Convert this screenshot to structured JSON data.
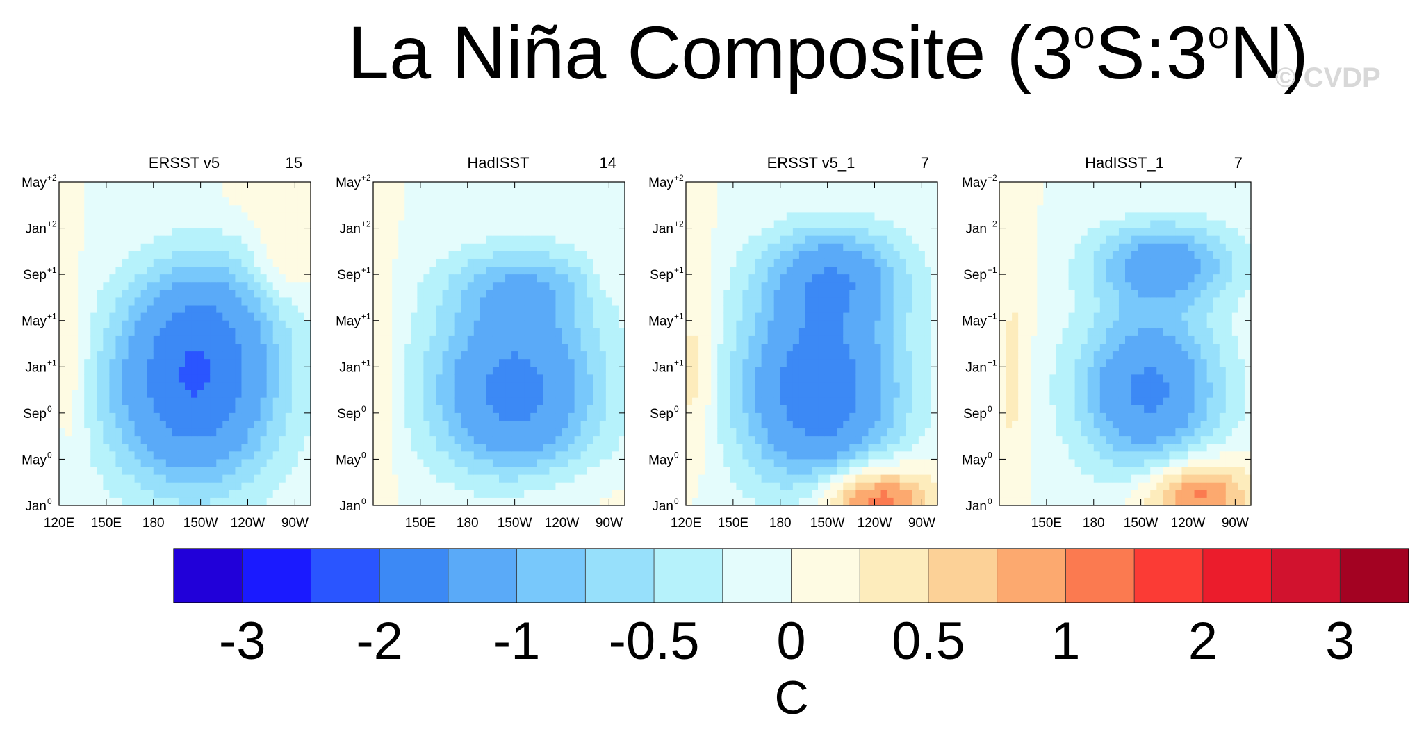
{
  "title": {
    "main": "La Niña Composite (3",
    "sup1": "o",
    "mid": "S:3",
    "sup2": "o",
    "end": "N)"
  },
  "watermark": "© CVDP",
  "colors": {
    "contour_fills": [
      "#2100d9",
      "#1a1aff",
      "#2a55ff",
      "#3c89f5",
      "#5aaaf8",
      "#78c8fb",
      "#97e0fb",
      "#b6f2fb",
      "#e4fcfc",
      "#fefbe3",
      "#fdecbc",
      "#fcd197",
      "#fca96f",
      "#fb7a50",
      "#fb3b35",
      "#eb1c2c",
      "#d1122e",
      "#a30222"
    ],
    "contour_line": "#666666"
  },
  "chart_data": {
    "type": "heatmap",
    "shared_axes": {
      "x_tick_labels": [
        "120E",
        "150E",
        "180",
        "150W",
        "120W",
        "90W"
      ],
      "x_ticks_deg": [
        120,
        150,
        180,
        210,
        240,
        270
      ],
      "y_tick_labels": [
        "Jan",
        "May",
        "Sep",
        "Jan",
        "May",
        "Sep",
        "Jan",
        "May"
      ],
      "y_tick_sups": [
        "0",
        "0",
        "0",
        "+1",
        "+1",
        "+1",
        "+2",
        "+2"
      ]
    },
    "colorbar": {
      "levels": [
        -3,
        -2.5,
        -2,
        -1.5,
        -1,
        -0.75,
        -0.5,
        -0.25,
        0,
        0.25,
        0.5,
        0.75,
        1,
        1.5,
        2,
        2.5,
        3
      ],
      "labels": [
        "-3",
        "-2",
        "-1",
        "-0.5",
        "0",
        "0.5",
        "1",
        "2",
        "3"
      ],
      "unit": "C"
    },
    "panels": [
      {
        "title": "ERSST v5",
        "count": "15",
        "xlim": [
          120,
          280
        ],
        "ylim": [
          0,
          28
        ],
        "x_labels": [
          "120E",
          "150E",
          "180",
          "150W",
          "120W",
          "90W"
        ]
      },
      {
        "title": "HadISST",
        "count": "14",
        "xlim": [
          120,
          280
        ],
        "ylim": [
          0,
          28
        ],
        "x_labels": [
          "",
          "150E",
          "180",
          "150W",
          "120W",
          "90W"
        ]
      },
      {
        "title": "ERSST v5_1",
        "count": "7",
        "xlim": [
          120,
          280
        ],
        "ylim": [
          0,
          28
        ],
        "x_labels": [
          "120E",
          "150E",
          "180",
          "150W",
          "120W",
          "90W"
        ]
      },
      {
        "title": "HadISST_1",
        "count": "7",
        "xlim": [
          120,
          280
        ],
        "ylim": [
          0,
          28
        ],
        "x_labels": [
          "",
          "150E",
          "180",
          "150W",
          "120W",
          "90W"
        ]
      }
    ]
  }
}
